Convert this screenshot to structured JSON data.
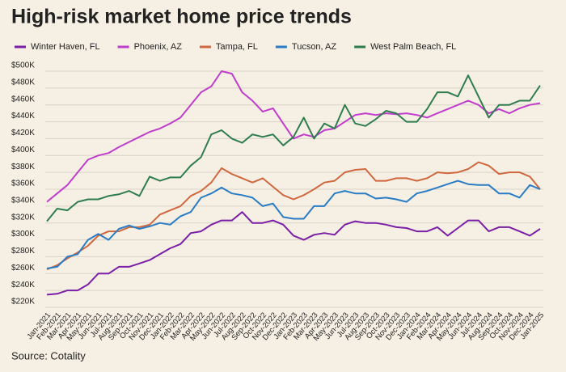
{
  "chart_data": {
    "type": "line",
    "title": "High-risk market home price trends",
    "source": "Source: Cotality",
    "categories": [
      "Jan-2021",
      "Feb-2021",
      "Mar-2021",
      "Apr-2021",
      "May-2021",
      "Jun-2021",
      "Jul-2021",
      "Aug-2021",
      "Sep-2021",
      "Oct-2021",
      "Nov-2021",
      "Dec-2021",
      "Jan-2022",
      "Feb-2022",
      "Mar-2022",
      "Apr-2022",
      "May-2022",
      "Jun-2022",
      "Jul-2022",
      "Aug-2022",
      "Sep-2022",
      "Oct-2022",
      "Nov-2022",
      "Dec-2022",
      "Jan-2023",
      "Feb-2023",
      "Mar-2023",
      "Apr-2023",
      "May-2023",
      "Jun-2023",
      "Jul-2023",
      "Aug-2023",
      "Sep-2023",
      "Oct-2023",
      "Nov-2023",
      "Dec-2023",
      "Jan-2024",
      "Feb-2024",
      "Mar-2024",
      "Apr-2024",
      "May-2024",
      "Jun-2024",
      "Jul-2024",
      "Aug-2024",
      "Sep-2024",
      "Oct-2024",
      "Nov-2024",
      "Dec-2024",
      "Jan-2025"
    ],
    "series": [
      {
        "name": "Winter Haven, FL",
        "color": "#7a1fa6",
        "values": [
          235000,
          236000,
          240000,
          240000,
          247000,
          260000,
          260000,
          268000,
          268000,
          272000,
          276000,
          283000,
          290000,
          295000,
          308000,
          310000,
          318000,
          323000,
          323000,
          333000,
          320000,
          320000,
          323000,
          318000,
          305000,
          300000,
          306000,
          308000,
          306000,
          318000,
          322000,
          320000,
          320000,
          318000,
          315000,
          314000,
          310000,
          310000,
          315000,
          305000,
          314000,
          323000,
          323000,
          310000,
          315000,
          315000,
          310000,
          305000,
          313000
        ]
      },
      {
        "name": "Phoenix, AZ",
        "color": "#c03dcc",
        "values": [
          345000,
          355000,
          365000,
          380000,
          395000,
          400000,
          403000,
          410000,
          416000,
          422000,
          428000,
          432000,
          438000,
          445000,
          460000,
          475000,
          482000,
          500000,
          497000,
          475000,
          465000,
          452000,
          456000,
          438000,
          420000,
          425000,
          422000,
          430000,
          432000,
          440000,
          448000,
          450000,
          448000,
          450000,
          449000,
          450000,
          448000,
          445000,
          450000,
          455000,
          460000,
          465000,
          460000,
          450000,
          455000,
          450000,
          456000,
          460000,
          462000
        ]
      },
      {
        "name": "Tampa, FL",
        "color": "#d0683f",
        "values": [
          265000,
          270000,
          278000,
          285000,
          293000,
          305000,
          310000,
          310000,
          315000,
          315000,
          318000,
          330000,
          335000,
          340000,
          352000,
          358000,
          368000,
          385000,
          378000,
          373000,
          368000,
          373000,
          363000,
          353000,
          348000,
          353000,
          360000,
          368000,
          370000,
          380000,
          383000,
          384000,
          370000,
          370000,
          373000,
          373000,
          370000,
          373000,
          380000,
          379000,
          380000,
          384000,
          392000,
          388000,
          378000,
          380000,
          380000,
          375000,
          360000
        ]
      },
      {
        "name": "Tucson, AZ",
        "color": "#2a7cc4",
        "values": [
          266000,
          268000,
          280000,
          283000,
          300000,
          307000,
          300000,
          313000,
          317000,
          313000,
          316000,
          320000,
          318000,
          328000,
          333000,
          350000,
          355000,
          362000,
          355000,
          353000,
          350000,
          340000,
          343000,
          327000,
          325000,
          325000,
          340000,
          340000,
          355000,
          358000,
          355000,
          355000,
          349000,
          350000,
          348000,
          345000,
          355000,
          358000,
          362000,
          366000,
          370000,
          366000,
          365000,
          365000,
          355000,
          355000,
          350000,
          365000,
          360000
        ]
      },
      {
        "name": "West Palm Beach, FL",
        "color": "#2f7d4e",
        "values": [
          322000,
          337000,
          335000,
          345000,
          348000,
          348000,
          352000,
          354000,
          358000,
          352000,
          375000,
          370000,
          374000,
          374000,
          388000,
          398000,
          425000,
          430000,
          420000,
          415000,
          425000,
          422000,
          425000,
          412000,
          422000,
          445000,
          420000,
          438000,
          432000,
          460000,
          438000,
          435000,
          443000,
          453000,
          450000,
          440000,
          440000,
          455000,
          475000,
          475000,
          470000,
          495000,
          470000,
          445000,
          460000,
          460000,
          465000,
          465000,
          483000
        ]
      }
    ],
    "ylim": [
      220000,
      500000
    ],
    "yticks": [
      {
        "value": 220000,
        "label": "$220K"
      },
      {
        "value": 240000,
        "label": "$240K"
      },
      {
        "value": 260000,
        "label": "$260K"
      },
      {
        "value": 280000,
        "label": "$280K"
      },
      {
        "value": 300000,
        "label": "$300K"
      },
      {
        "value": 320000,
        "label": "$320K"
      },
      {
        "value": 340000,
        "label": "$340K"
      },
      {
        "value": 360000,
        "label": "$360K"
      },
      {
        "value": 380000,
        "label": "$380K"
      },
      {
        "value": 400000,
        "label": "$400K"
      },
      {
        "value": 420000,
        "label": "$420K"
      },
      {
        "value": 440000,
        "label": "$440K"
      },
      {
        "value": 460000,
        "label": "$460K"
      },
      {
        "value": 480000,
        "label": "$480K"
      },
      {
        "value": 500000,
        "label": "$500K"
      }
    ],
    "grid": true,
    "legend": "top"
  }
}
